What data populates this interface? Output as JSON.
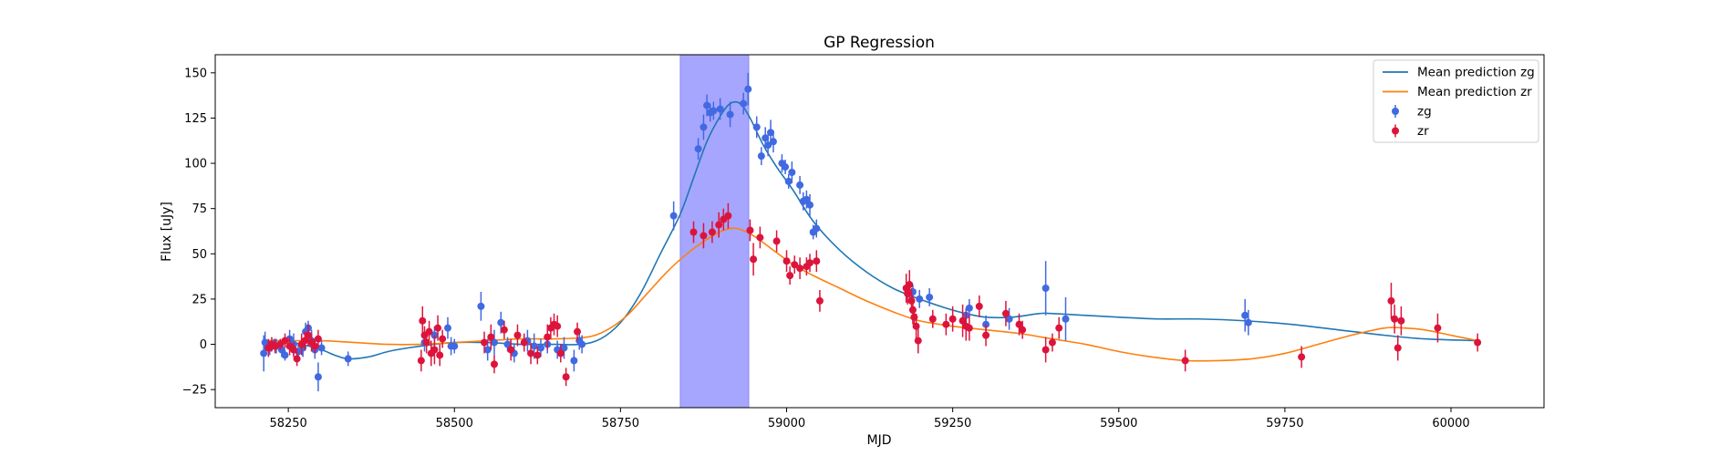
{
  "chart_data": {
    "type": "scatter",
    "title": "GP Regression",
    "xlabel": "MJD",
    "ylabel": "Flux [uJy]",
    "xlim": [
      58140,
      60140
    ],
    "ylim": [
      -35,
      160
    ],
    "xticks": [
      58250,
      58500,
      58750,
      59000,
      59250,
      59500,
      59750,
      60000
    ],
    "yticks": [
      -25,
      0,
      25,
      50,
      75,
      100,
      125,
      150
    ],
    "grid": false,
    "legend_position": "top-right",
    "shaded_region": {
      "x_start": 58840,
      "x_end": 58943,
      "color": "#a6a6ff"
    },
    "series": [
      {
        "name": "Mean prediction zg",
        "kind": "line",
        "color": "#1f77b4",
        "x": [
          58212,
          58240,
          58270,
          58300,
          58320,
          58340,
          58370,
          58400,
          58430,
          58470,
          58500,
          58550,
          58600,
          58650,
          58690,
          58720,
          58750,
          58780,
          58810,
          58840,
          58860,
          58880,
          58900,
          58915,
          58930,
          58945,
          58965,
          58985,
          59010,
          59040,
          59080,
          59120,
          59160,
          59200,
          59240,
          59270,
          59300,
          59340,
          59380,
          59400,
          59450,
          59500,
          59560,
          59620,
          59690,
          59760,
          59830,
          59900,
          59960,
          60040
        ],
        "y": [
          1,
          2,
          0,
          -3,
          -6,
          -8,
          -7,
          -4,
          -2,
          0,
          1,
          1,
          0,
          0,
          0,
          3,
          12,
          28,
          50,
          72,
          92,
          112,
          126,
          133,
          133,
          125,
          110,
          98,
          85,
          68,
          52,
          40,
          31,
          25,
          20,
          17,
          15,
          15,
          17,
          17,
          16,
          15,
          14,
          14,
          13,
          11,
          8,
          5,
          3,
          2
        ]
      },
      {
        "name": "Mean prediction zr",
        "kind": "line",
        "color": "#ff7f0e",
        "x": [
          58212,
          58250,
          58300,
          58350,
          58400,
          58450,
          58500,
          58550,
          58600,
          58650,
          58700,
          58730,
          58760,
          58790,
          58820,
          58850,
          58880,
          58905,
          58925,
          58950,
          58980,
          59010,
          59040,
          59080,
          59120,
          59160,
          59200,
          59250,
          59300,
          59350,
          59400,
          59450,
          59500,
          59550,
          59600,
          59650,
          59700,
          59750,
          59800,
          59850,
          59900,
          59930,
          59960,
          60000,
          60040
        ],
        "y": [
          2,
          2,
          2,
          1,
          0,
          0,
          1,
          2,
          3,
          3,
          4,
          8,
          16,
          28,
          40,
          50,
          58,
          63,
          64,
          60,
          52,
          44,
          38,
          31,
          24,
          18,
          13,
          10,
          8,
          6,
          3,
          0,
          -4,
          -7,
          -9,
          -9,
          -8,
          -5,
          0,
          5,
          9,
          9,
          8,
          5,
          2
        ]
      },
      {
        "name": "zg",
        "kind": "errorbar",
        "color": "#4169e1",
        "x": [
          58213,
          58215,
          58222,
          58228,
          58232,
          58240,
          58245,
          58252,
          58258,
          58265,
          58272,
          58276,
          58280,
          58285,
          58290,
          58295,
          58300,
          58340,
          58455,
          58470,
          58490,
          58495,
          58500,
          58540,
          58550,
          58560,
          58570,
          58580,
          58590,
          58610,
          58620,
          58630,
          58640,
          58655,
          58665,
          58680,
          58688,
          58692,
          58830,
          58867,
          58875,
          58880,
          58885,
          58890,
          58900,
          58915,
          58935,
          58942,
          58955,
          58962,
          58968,
          58972,
          58976,
          58980,
          58993,
          58998,
          59003,
          59008,
          59020,
          59025,
          59030,
          59035,
          59040,
          59045,
          59185,
          59190,
          59200,
          59215,
          59270,
          59275,
          59300,
          59335,
          59390,
          59420,
          59690,
          59695
        ],
        "y": [
          -5,
          1,
          -2,
          0,
          -1,
          -3,
          -6,
          3,
          0,
          -4,
          -2,
          7,
          9,
          2,
          -3,
          -18,
          -2,
          -8,
          1,
          5,
          9,
          -1,
          -1,
          21,
          -3,
          1,
          12,
          0,
          -5,
          2,
          -1,
          -2,
          0,
          -3,
          -2,
          -9,
          2,
          0,
          71,
          108,
          120,
          132,
          128,
          129,
          130,
          127,
          133,
          141,
          120,
          104,
          114,
          110,
          117,
          112,
          100,
          98,
          90,
          95,
          88,
          79,
          80,
          77,
          62,
          64,
          28,
          29,
          25,
          26,
          16,
          20,
          11,
          14,
          31,
          14,
          16,
          12
        ],
        "err": [
          10,
          6,
          4,
          3,
          4,
          4,
          3,
          5,
          6,
          4,
          5,
          5,
          4,
          6,
          5,
          8,
          4,
          4,
          5,
          5,
          6,
          5,
          4,
          8,
          6,
          7,
          6,
          4,
          5,
          6,
          7,
          5,
          5,
          5,
          6,
          6,
          5,
          5,
          8,
          6,
          7,
          6,
          5,
          5,
          6,
          7,
          6,
          9,
          6,
          5,
          6,
          6,
          7,
          6,
          5,
          4,
          4,
          6,
          5,
          5,
          5,
          6,
          4,
          5,
          4,
          4,
          5,
          5,
          4,
          5,
          5,
          6,
          15,
          12,
          9,
          7
        ]
      },
      {
        "name": "zr",
        "kind": "errorbar",
        "color": "#dc143c",
        "x": [
          58220,
          58225,
          58230,
          58238,
          58245,
          58252,
          58258,
          58263,
          58270,
          58275,
          58280,
          58285,
          58290,
          58295,
          58450,
          58452,
          58455,
          58458,
          58462,
          58465,
          58470,
          58475,
          58478,
          58482,
          58545,
          58555,
          58560,
          58575,
          58585,
          58595,
          58605,
          58615,
          58625,
          58640,
          58645,
          58650,
          58655,
          58660,
          58668,
          58685,
          58860,
          58875,
          58888,
          58898,
          58905,
          58912,
          58945,
          58950,
          58960,
          58985,
          59000,
          59005,
          59012,
          59020,
          59030,
          59035,
          59045,
          59050,
          59180,
          59182,
          59185,
          59188,
          59190,
          59192,
          59195,
          59198,
          59220,
          59240,
          59250,
          59265,
          59270,
          59275,
          59290,
          59300,
          59330,
          59350,
          59355,
          59390,
          59400,
          59410,
          59600,
          59775,
          59910,
          59915,
          59920,
          59925,
          59980,
          60040
        ],
        "y": [
          -2,
          0,
          -1,
          0,
          2,
          -1,
          -3,
          -8,
          0,
          2,
          5,
          1,
          -1,
          3,
          -9,
          13,
          5,
          1,
          7,
          -5,
          -3,
          9,
          -6,
          3,
          1,
          4,
          -11,
          8,
          -3,
          5,
          1,
          -5,
          -6,
          4,
          9,
          11,
          10,
          -5,
          -18,
          7,
          62,
          60,
          62,
          66,
          69,
          71,
          63,
          47,
          59,
          57,
          46,
          38,
          44,
          42,
          43,
          45,
          46,
          24,
          31,
          28,
          33,
          24,
          19,
          15,
          10,
          2,
          14,
          11,
          14,
          13,
          10,
          9,
          21,
          5,
          17,
          11,
          8,
          -3,
          1,
          9,
          -9,
          -7,
          24,
          14,
          -2,
          13,
          9,
          1
        ],
        "err": [
          5,
          4,
          4,
          3,
          4,
          5,
          4,
          4,
          6,
          5,
          6,
          5,
          4,
          5,
          6,
          8,
          5,
          6,
          6,
          7,
          8,
          7,
          6,
          5,
          6,
          7,
          5,
          5,
          6,
          6,
          5,
          6,
          5,
          7,
          6,
          6,
          6,
          5,
          5,
          5,
          6,
          7,
          6,
          7,
          6,
          7,
          6,
          9,
          6,
          6,
          6,
          5,
          5,
          6,
          5,
          5,
          6,
          6,
          8,
          6,
          8,
          7,
          8,
          6,
          7,
          7,
          5,
          6,
          7,
          9,
          8,
          7,
          6,
          6,
          7,
          6,
          5,
          7,
          5,
          6,
          6,
          6,
          10,
          8,
          7,
          8,
          8,
          5
        ]
      }
    ]
  }
}
